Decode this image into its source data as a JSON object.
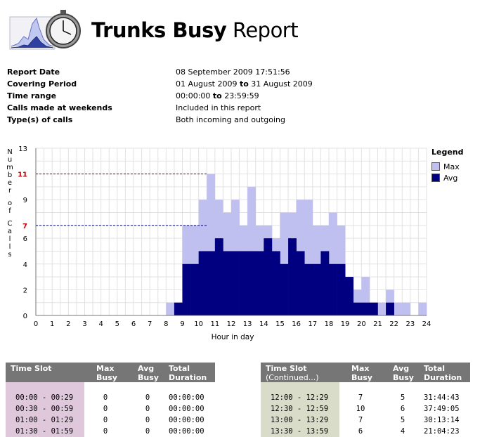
{
  "header": {
    "title_bold": "Trunks Busy",
    "title_normal": " Report",
    "logo_icon": "stopwatch-chart-icon"
  },
  "info": [
    {
      "label": "Report Date",
      "value": "08 September 2009 17:51:56"
    },
    {
      "label": "Covering Period",
      "value_pre": "01 August 2009 ",
      "value_bold": "to",
      "value_post": " 31 August 2009"
    },
    {
      "label": "Time range",
      "value_pre": "00:00:00 ",
      "value_bold": "to",
      "value_post": " 23:59:59"
    },
    {
      "label": "Calls made at weekends",
      "value": "Included in this report"
    },
    {
      "label": "Type(s) of calls",
      "value": "Both incoming and outgoing"
    }
  ],
  "chart_data": {
    "type": "area",
    "ylabel": "Number of Calls",
    "xlabel": "Hour in day",
    "ylim": [
      0,
      13
    ],
    "yticks": [
      0,
      2,
      4,
      6,
      7,
      9,
      11,
      13
    ],
    "xlim": [
      0,
      24
    ],
    "xticks": [
      0,
      1,
      2,
      3,
      4,
      5,
      6,
      7,
      8,
      9,
      10,
      11,
      12,
      13,
      14,
      15,
      16,
      17,
      18,
      19,
      20,
      21,
      22,
      23,
      24
    ],
    "highlight_ticks": {
      "max": 11,
      "avg": 7
    },
    "grid": true,
    "legend_position": "right",
    "interval_hours": 0.5,
    "series": [
      {
        "name": "Max",
        "color": "#c0c0f0",
        "values": [
          0,
          0,
          0,
          0,
          0,
          0,
          0,
          0,
          0,
          0,
          0,
          0,
          0,
          0,
          0,
          0,
          1,
          1,
          7,
          7,
          9,
          11,
          9,
          8,
          9,
          7,
          10,
          7,
          7,
          6,
          8,
          8,
          9,
          9,
          7,
          7,
          8,
          7,
          3,
          2,
          3,
          1,
          1,
          2,
          1,
          1,
          0,
          1,
          0
        ]
      },
      {
        "name": "Avg",
        "color": "#000080",
        "values": [
          0,
          0,
          0,
          0,
          0,
          0,
          0,
          0,
          0,
          0,
          0,
          0,
          0,
          0,
          0,
          0,
          0,
          1,
          4,
          4,
          5,
          5,
          6,
          5,
          5,
          5,
          5,
          5,
          6,
          5,
          4,
          6,
          5,
          4,
          4,
          5,
          4,
          4,
          3,
          1,
          1,
          1,
          0,
          1,
          0,
          0,
          0,
          0,
          0
        ]
      }
    ]
  },
  "legend": {
    "title": "Legend",
    "items": [
      {
        "label": "Max",
        "color": "#c0c0f0"
      },
      {
        "label": "Avg",
        "color": "#000080"
      }
    ]
  },
  "table_left": {
    "headers": {
      "slot": "Time Slot",
      "max": "Max",
      "max2": "Busy",
      "avg": "Avg",
      "avg2": "Busy",
      "dur": "Total",
      "dur2": "Duration"
    },
    "shade": "#e0c8dc",
    "rows": [
      {
        "slot": "00:00 - 00:29",
        "max": "0",
        "avg": "0",
        "dur": "00:00:00"
      },
      {
        "slot": "00:30 - 00:59",
        "max": "0",
        "avg": "0",
        "dur": "00:00:00"
      },
      {
        "slot": "01:00 - 01:29",
        "max": "0",
        "avg": "0",
        "dur": "00:00:00"
      },
      {
        "slot": "01:30 - 01:59",
        "max": "0",
        "avg": "0",
        "dur": "00:00:00"
      }
    ]
  },
  "table_right": {
    "headers": {
      "slot": "Time Slot",
      "slot2": "(Continued...)",
      "max": "Max",
      "max2": "Busy",
      "avg": "Avg",
      "avg2": "Busy",
      "dur": "Total",
      "dur2": "Duration"
    },
    "shade": "#d8dcc8",
    "rows": [
      {
        "slot": "12:00 - 12:29",
        "max": "7",
        "avg": "5",
        "dur": "31:44:43"
      },
      {
        "slot": "12:30 - 12:59",
        "max": "10",
        "avg": "6",
        "dur": "37:49:05"
      },
      {
        "slot": "13:00 - 13:29",
        "max": "7",
        "avg": "5",
        "dur": "30:13:14"
      },
      {
        "slot": "13:30 - 13:59",
        "max": "6",
        "avg": "4",
        "dur": "21:04:23"
      }
    ]
  }
}
